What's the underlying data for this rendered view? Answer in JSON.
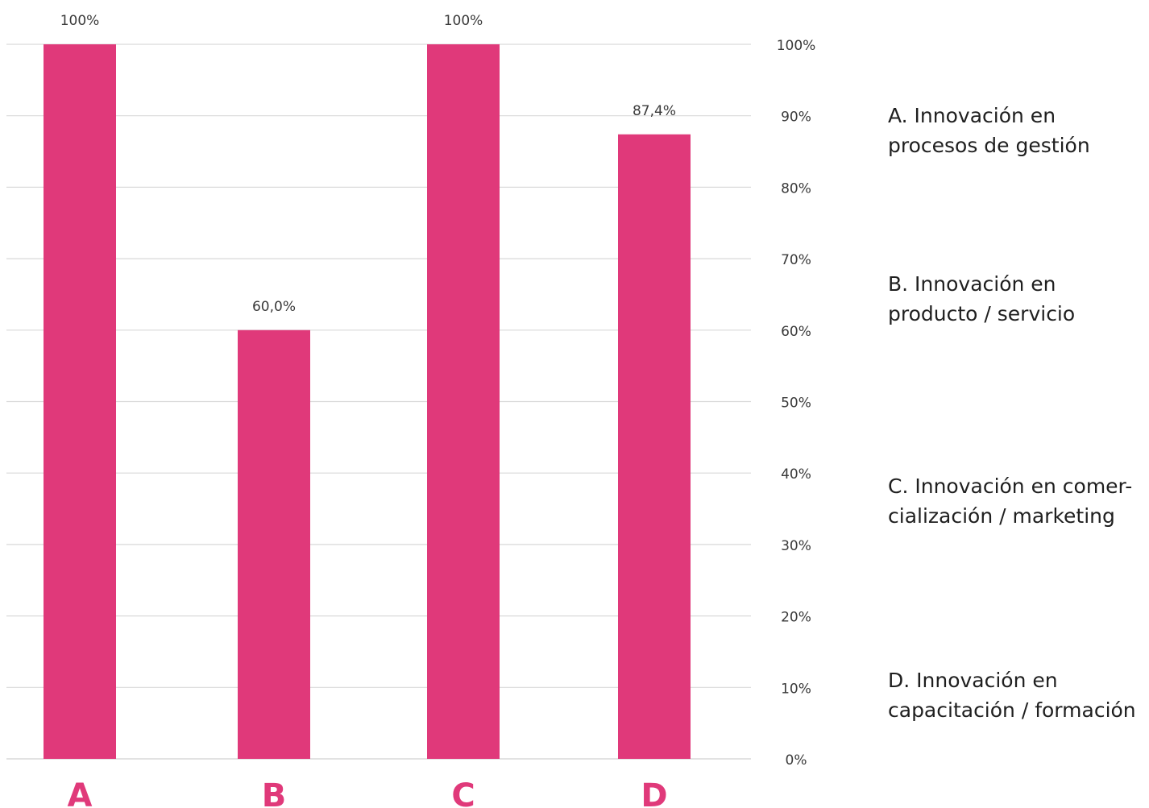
{
  "chart_data": {
    "type": "bar",
    "categories": [
      "A",
      "B",
      "C",
      "D"
    ],
    "values": [
      100,
      60.0,
      100,
      87.4
    ],
    "value_labels": [
      "100%",
      "60,0%",
      "100%",
      "87,4%"
    ],
    "ylim": [
      0,
      100
    ],
    "y_ticks": [
      0,
      10,
      20,
      30,
      40,
      50,
      60,
      70,
      80,
      90,
      100
    ],
    "y_tick_labels": [
      "0%",
      "10%",
      "20%",
      "30%",
      "40%",
      "50%",
      "60%",
      "70%",
      "80%",
      "90%",
      "100%"
    ],
    "y_axis_side": "right",
    "grid": true,
    "bar_color": "#e0397a",
    "category_label_color": "#e0397a",
    "grid_color": "#d9d9d9",
    "legend_placement": "right",
    "legend": [
      {
        "lines": [
          "A. Innovación en",
          "procesos de gestión"
        ]
      },
      {
        "lines": [
          "B. Innovación en",
          "producto / servicio"
        ]
      },
      {
        "lines": [
          "C. Innovación en comer-",
          "cialización / marketing"
        ]
      },
      {
        "lines": [
          "D. Innovación en",
          "capacitación / formación"
        ]
      }
    ]
  }
}
